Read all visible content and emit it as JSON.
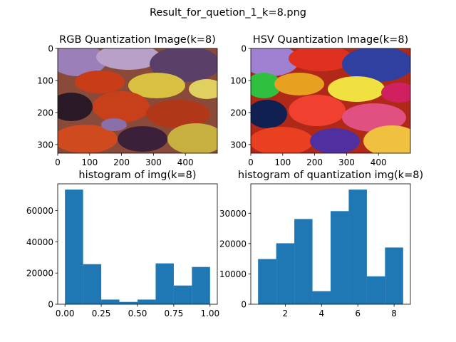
{
  "figure_title": "Result_for_quetion_1_k=8.png",
  "chart_data": [
    {
      "type": "image",
      "title": "RGB  Quantization Image(k=8)",
      "xlim": [
        0,
        500
      ],
      "ylim": [
        327,
        0
      ],
      "xticks": [
        0,
        100,
        200,
        300,
        400
      ],
      "yticks": [
        0,
        100,
        200,
        300
      ]
    },
    {
      "type": "image",
      "title": "HSV Quantization Image(k=8)",
      "xlim": [
        0,
        500
      ],
      "ylim": [
        327,
        0
      ],
      "xticks": [
        0,
        100,
        200,
        300,
        400
      ],
      "yticks": [
        0,
        100,
        200,
        300
      ]
    },
    {
      "type": "histogram",
      "title": "histogram of img(k=8)",
      "color": "#1f77b4",
      "bins": [
        0,
        0.125,
        0.25,
        0.375,
        0.5,
        0.625,
        0.75,
        0.875,
        1
      ],
      "values": [
        73500,
        25700,
        3000,
        1500,
        3000,
        26200,
        12000,
        23900
      ],
      "xlim": [
        -0.05,
        1.05
      ],
      "ylim": [
        0,
        77200
      ],
      "xticks": [
        {
          "value": 0,
          "label": "0.00"
        },
        {
          "value": 0.25,
          "label": "0.25"
        },
        {
          "value": 0.5,
          "label": "0.50"
        },
        {
          "value": 0.75,
          "label": "0.75"
        },
        {
          "value": 1,
          "label": "1.00"
        }
      ],
      "yticks": [
        0,
        20000,
        40000,
        60000
      ]
    },
    {
      "type": "histogram",
      "title": "histogram of quantization img(k=8)",
      "color": "#1f77b4",
      "bins": [
        0.5,
        1.5,
        2.5,
        3.5,
        4.5,
        5.5,
        6.5,
        7.5,
        8.5
      ],
      "values": [
        14900,
        20100,
        28100,
        4300,
        30700,
        37800,
        9200,
        18700
      ],
      "xlim": [
        0.1,
        8.9
      ],
      "ylim": [
        0,
        39700
      ],
      "xticks": [
        2,
        4,
        6,
        8
      ],
      "yticks": [
        0,
        10000,
        20000,
        30000
      ]
    }
  ]
}
